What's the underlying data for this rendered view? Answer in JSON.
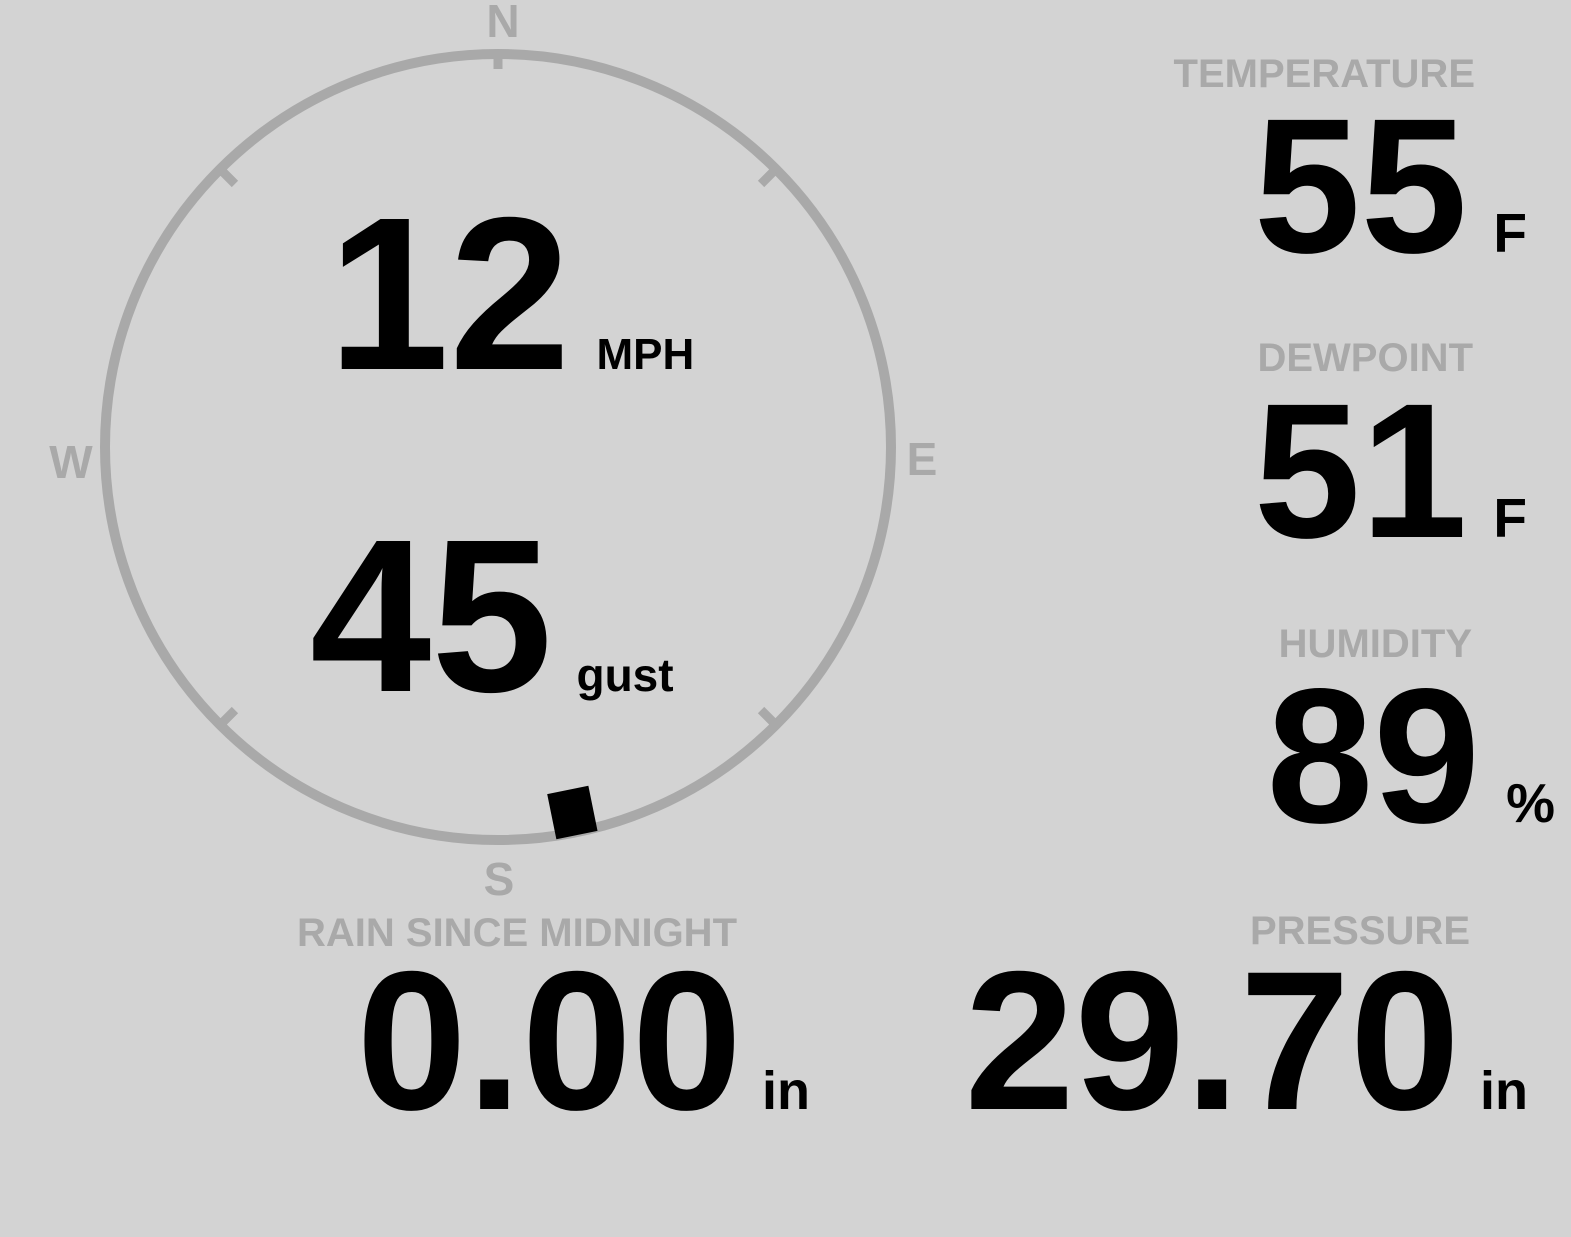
{
  "colors": {
    "background": "#d3d3d3",
    "muted": "#a9a9a9",
    "value": "#000000"
  },
  "wind": {
    "speed": "12",
    "speed_unit": "MPH",
    "gust": "45",
    "gust_unit": "gust",
    "direction_deg": 168.5,
    "compass": {
      "north": "N",
      "east": "E",
      "south": "S",
      "west": "W"
    }
  },
  "metrics": {
    "temperature": {
      "label": "TEMPERATURE",
      "value": "55",
      "unit": "F"
    },
    "dewpoint": {
      "label": "DEWPOINT",
      "value": "51",
      "unit": "F"
    },
    "humidity": {
      "label": "HUMIDITY",
      "value": "89",
      "unit": "%"
    },
    "rain": {
      "label": "RAIN SINCE MIDNIGHT",
      "value": "0.00",
      "unit": "in"
    },
    "pressure": {
      "label": "PRESSURE",
      "value": "29.70",
      "unit": "in"
    }
  }
}
